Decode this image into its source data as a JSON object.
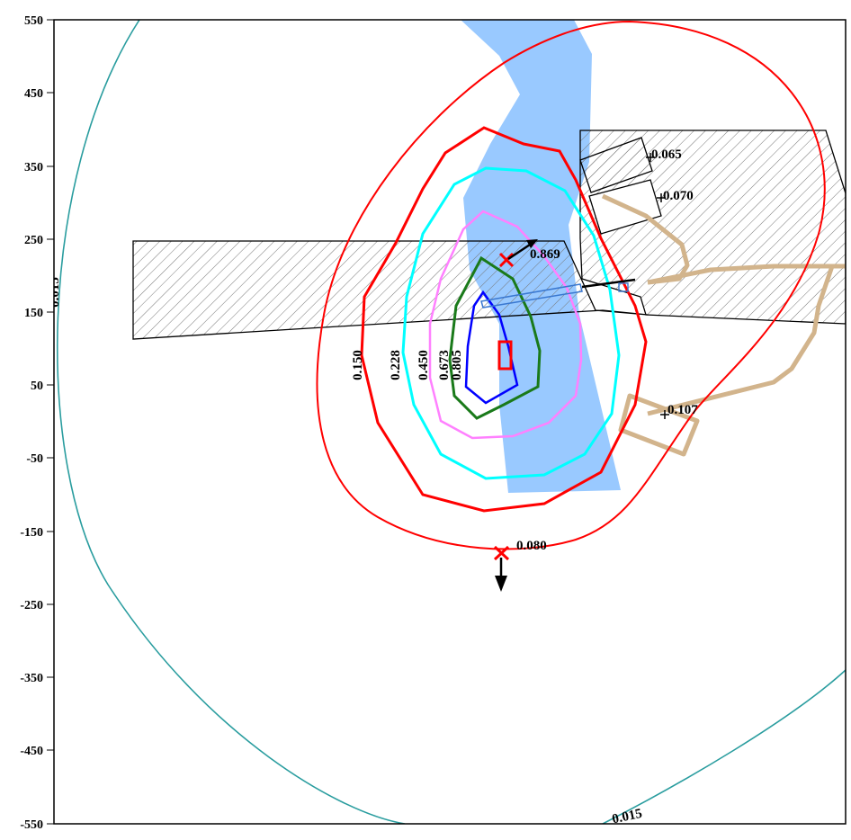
{
  "y_axis": {
    "ticks": [
      "550",
      "450",
      "350",
      "250",
      "150",
      "50",
      "-50",
      "-150",
      "-250",
      "-350",
      "-450",
      "-550"
    ]
  },
  "contour_labels": {
    "c015_left": "0.015",
    "c015_bottom": "0.015",
    "c150": "0.150",
    "c228": "0.228",
    "c450": "0.450",
    "c673": "0.673",
    "c805": "0.805"
  },
  "receptor_labels": {
    "r065": "0.065",
    "r070": "0.070",
    "r869": "0.869",
    "r107": "0.107",
    "r080": "0.080"
  },
  "colors": {
    "c015": "#2a9d9f",
    "c080": "#ff0000",
    "c150": "#ff0000",
    "c228": "#00ffff",
    "c450": "#ff80ff",
    "c673": "#1a7a1a",
    "c805": "#0000ff",
    "river": "#99c9ff",
    "path": "#d2b48c",
    "source": "#ff0000"
  }
}
